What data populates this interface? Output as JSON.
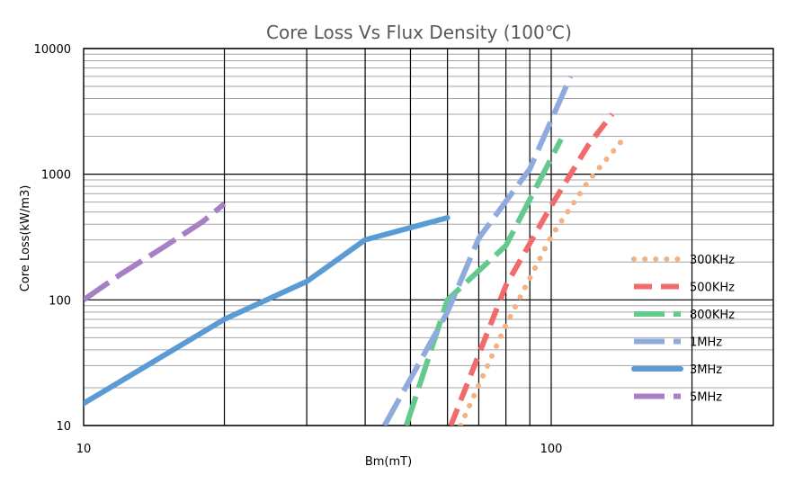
{
  "chart_data": {
    "type": "line",
    "title": "Core Loss Vs Flux Density (100℃)",
    "xlabel": "Bm(mT)",
    "ylabel": "Core Loss(kW/m3)",
    "x_scale": "log",
    "y_scale": "log",
    "xlim": [
      10,
      300
    ],
    "ylim": [
      10,
      10000
    ],
    "x_tick_labels": [
      "10",
      "100"
    ],
    "y_tick_labels": [
      "10",
      "100",
      "1000",
      "10000"
    ],
    "grid": true,
    "legend_position": "right",
    "series": [
      {
        "name": "300KHz",
        "color": "#f4b183",
        "style": "dotted",
        "x": [
          64,
          80,
          100,
          120,
          145
        ],
        "y": [
          10,
          63,
          320,
          880,
          2050
        ]
      },
      {
        "name": "500KHz",
        "color": "#f06b6b",
        "style": "dashed",
        "x": [
          61,
          80,
          100,
          120,
          135
        ],
        "y": [
          10,
          130,
          560,
          1700,
          3000
        ]
      },
      {
        "name": "800KHz",
        "color": "#63c98c",
        "style": "dashed-long",
        "x": [
          49,
          60,
          80,
          105
        ],
        "y": [
          10,
          100,
          270,
          1900
        ]
      },
      {
        "name": "1MHz",
        "color": "#8faadc",
        "style": "dashed-long",
        "x": [
          44,
          60,
          70,
          90,
          110
        ],
        "y": [
          10,
          80,
          310,
          1100,
          6000
        ]
      },
      {
        "name": "3MHz",
        "color": "#5b9bd5",
        "style": "solid",
        "x": [
          10,
          20,
          30,
          40,
          60
        ],
        "y": [
          15,
          70,
          140,
          300,
          450
        ]
      },
      {
        "name": "5MHz",
        "color": "#a67fc5",
        "style": "dashed-long",
        "x": [
          10,
          12,
          15,
          18,
          20
        ],
        "y": [
          100,
          160,
          270,
          420,
          580
        ]
      }
    ]
  }
}
